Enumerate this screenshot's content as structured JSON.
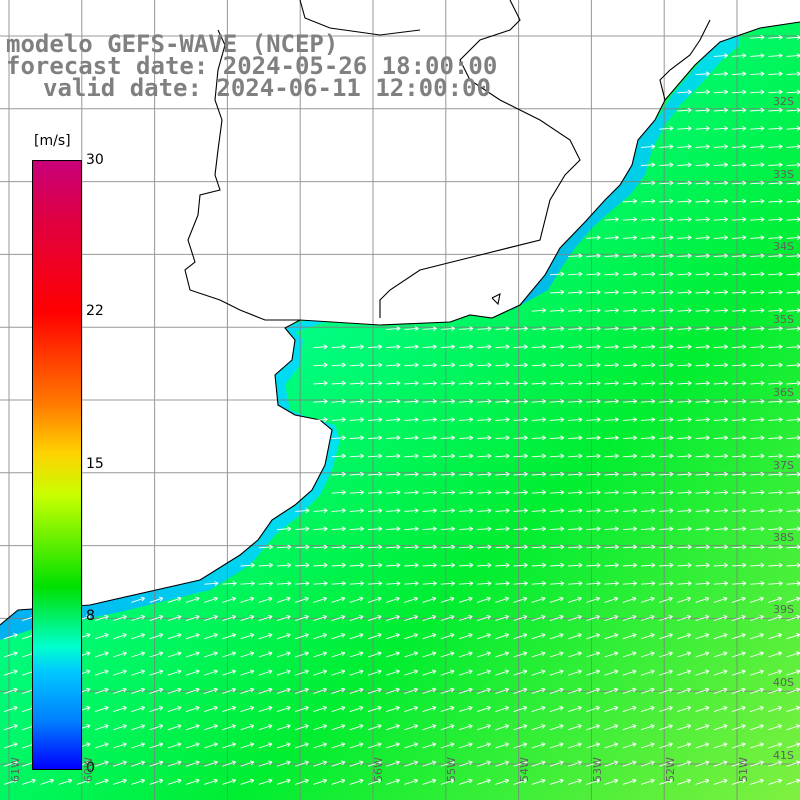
{
  "title": {
    "line1": "modelo GEFS-WAVE (NCEP)",
    "line2": "forecast date: 2024-05-26 18:00:00",
    "line3": "valid date: 2024-06-11 12:00:00"
  },
  "colorbar": {
    "unit": "[m/s]",
    "ticks": [
      "30",
      "22",
      "15",
      "8",
      "0"
    ],
    "colors": [
      "#c8007a",
      "#ff0000",
      "#ff7a00",
      "#ffd200",
      "#00e000",
      "#00ffd0",
      "#00c8ff",
      "#0000ff"
    ]
  },
  "lat_labels": [
    "32S",
    "33S",
    "34S",
    "35S",
    "36S",
    "37S",
    "38S",
    "39S",
    "40S",
    "41S"
  ],
  "lon_labels": [
    "61W",
    "60W",
    "56W",
    "55W",
    "54W",
    "53W",
    "52W",
    "51W"
  ],
  "colors": {
    "land": "#ffffff",
    "coast": "#000000",
    "grid": "#7f7f7f",
    "arrow": "#ffffff",
    "title": "#808080"
  }
}
